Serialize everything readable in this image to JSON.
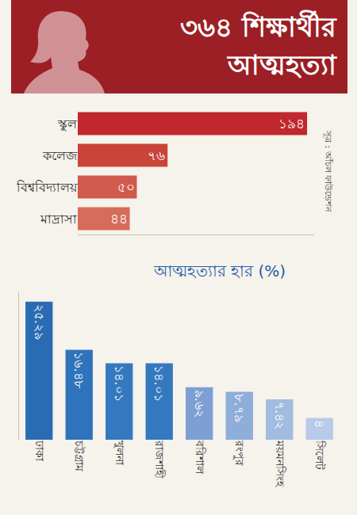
{
  "chart_data": [
    {
      "type": "bar",
      "title": "৩৬৪ শিক্ষার্থীর আত্মহত্যা",
      "orientation": "horizontal",
      "categories": [
        "স্কুল",
        "কলেজ",
        "বিশ্ববিদ্যালয়",
        "মাদ্রাসা"
      ],
      "values": [
        194,
        76,
        50,
        44
      ],
      "value_labels": [
        "১৯৪",
        "৭৬",
        "৫০",
        "৪৪"
      ],
      "colors": [
        "#c0282d",
        "#c94439",
        "#d05a4c",
        "#d66c5c"
      ],
      "xlim": [
        0,
        200
      ],
      "xticks": [],
      "grid": false,
      "data_labels": true,
      "tick_labels": "y",
      "annotations": [
        "সূত্র : আঁচল ফাউন্ডেশন"
      ]
    },
    {
      "type": "bar",
      "title": "আত্মহত্যার হার (%)",
      "categories": [
        "ঢাকা",
        "চট্টগ্রাম",
        "খুলনা",
        "রাজশাহী",
        "বরিশাল",
        "রংপুর",
        "ময়মনসিংহ",
        "সিলেট"
      ],
      "values": [
        25.29,
        16.48,
        14.01,
        14.01,
        9.62,
        8.79,
        7.42,
        4
      ],
      "value_labels": [
        "২৫.২৯",
        "১৬.৪৮",
        "১৪.০১",
        "১৪.০১",
        "৯.৬২",
        "৮.৭৯",
        "৭.৪২",
        "৪"
      ],
      "colors": [
        "#2a6cb4",
        "#2f73bb",
        "#3479c0",
        "#3479c0",
        "#7d9fd3",
        "#8fadd9",
        "#a2bbe0",
        "#b7cbe8"
      ],
      "ylim": [
        0,
        27
      ],
      "yticks": [],
      "grid": false,
      "data_labels": true,
      "tick_labels": "x"
    }
  ]
}
